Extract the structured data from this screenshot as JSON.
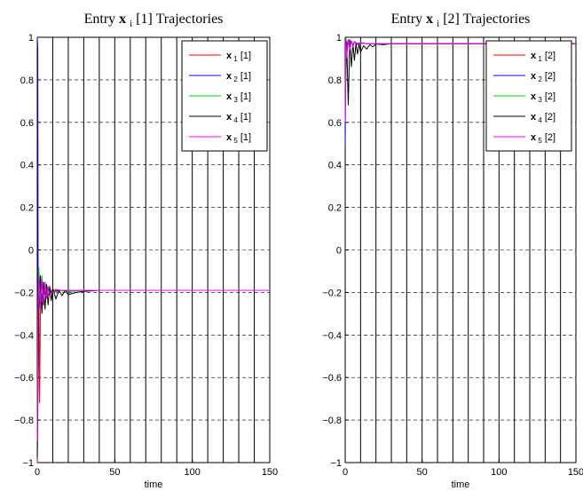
{
  "chart_data": [
    {
      "type": "line",
      "title": {
        "prefix": "Entry ",
        "bold": "x",
        "sub": "i",
        "suffix": " [1] Trajectories"
      },
      "xlabel": "time",
      "ylabel": "",
      "xlim": [
        0,
        150
      ],
      "ylim": [
        -1,
        1
      ],
      "xticks": [
        0,
        50,
        100,
        150
      ],
      "yticks": [
        -1,
        -0.8,
        -0.6,
        -0.4,
        -0.2,
        0,
        0.2,
        0.4,
        0.6,
        0.8,
        1
      ],
      "xtick_labels": [
        "0",
        "50",
        "100",
        "150"
      ],
      "ytick_labels": [
        "−1",
        "−0.8",
        "−0.6",
        "−0.4",
        "−0.2",
        "0",
        "0.2",
        "0.4",
        "0.6",
        "0.8",
        "1"
      ],
      "grid": true,
      "legend_position": "top-right",
      "series": [
        {
          "name": {
            "bold": "x",
            "sub": "1",
            "suffix": " [1]"
          },
          "color": "#ff0000",
          "x": [
            0,
            0.5,
            1,
            1.5,
            2,
            3,
            4,
            5,
            6,
            8,
            10,
            15,
            20,
            30,
            40,
            50,
            75,
            100,
            125,
            150
          ],
          "y": [
            -1,
            -0.5,
            -0.15,
            -0.72,
            -0.3,
            -0.14,
            -0.26,
            -0.18,
            -0.22,
            -0.2,
            -0.195,
            -0.19,
            -0.195,
            -0.19,
            -0.19,
            -0.19,
            -0.19,
            -0.19,
            -0.19,
            -0.19
          ]
        },
        {
          "name": {
            "bold": "x",
            "sub": "2",
            "suffix": " [1]"
          },
          "color": "#0000ff",
          "x": [
            0,
            0.3,
            0.6,
            1,
            1.5,
            2,
            3,
            4,
            5,
            6,
            8,
            10,
            15,
            20,
            30,
            40,
            50,
            75,
            100,
            125,
            150
          ],
          "y": [
            1,
            0.95,
            -0.4,
            -0.22,
            -0.25,
            -0.15,
            -0.23,
            -0.17,
            -0.21,
            -0.18,
            -0.2,
            -0.19,
            -0.19,
            -0.195,
            -0.19,
            -0.19,
            -0.19,
            -0.19,
            -0.19,
            -0.19,
            -0.19
          ]
        },
        {
          "name": {
            "bold": "x",
            "sub": "3",
            "suffix": " [1]"
          },
          "color": "#00cc00",
          "x": [
            0,
            0.5,
            1,
            2,
            3,
            4,
            5,
            6,
            8,
            10,
            15,
            20,
            30,
            40,
            50,
            75,
            100,
            125,
            150
          ],
          "y": [
            -0.95,
            -0.3,
            -0.08,
            -0.25,
            -0.12,
            -0.24,
            -0.15,
            -0.22,
            -0.18,
            -0.2,
            -0.19,
            -0.195,
            -0.19,
            -0.19,
            -0.19,
            -0.19,
            -0.19,
            -0.19,
            -0.19
          ]
        },
        {
          "name": {
            "bold": "x",
            "sub": "4",
            "suffix": " [1]"
          },
          "color": "#000000",
          "x": [
            0,
            1,
            2,
            3,
            4,
            5,
            6,
            7,
            8,
            9,
            10,
            12,
            14,
            16,
            18,
            20,
            25,
            30,
            40,
            50,
            75,
            100,
            125,
            150
          ],
          "y": [
            -0.98,
            -0.3,
            -0.12,
            -0.3,
            -0.15,
            -0.28,
            -0.16,
            -0.26,
            -0.17,
            -0.24,
            -0.18,
            -0.23,
            -0.19,
            -0.215,
            -0.19,
            -0.21,
            -0.2,
            -0.195,
            -0.19,
            -0.19,
            -0.19,
            -0.19,
            -0.19,
            -0.19
          ]
        },
        {
          "name": {
            "bold": "x",
            "sub": "5",
            "suffix": " [1]"
          },
          "color": "#ff00ff",
          "x": [
            0,
            0.5,
            1,
            2,
            3,
            4,
            5,
            6,
            7,
            8,
            10,
            12,
            15,
            20,
            30,
            40,
            50,
            75,
            100,
            125,
            150
          ],
          "y": [
            -0.9,
            -0.35,
            -0.12,
            -0.28,
            -0.14,
            -0.25,
            -0.15,
            -0.23,
            -0.17,
            -0.21,
            -0.2,
            -0.185,
            -0.19,
            -0.19,
            -0.19,
            -0.19,
            -0.19,
            -0.19,
            -0.19,
            -0.19,
            -0.19
          ]
        }
      ]
    },
    {
      "type": "line",
      "title": {
        "prefix": "Entry ",
        "bold": "x",
        "sub": "i",
        "suffix": " [2] Trajectories"
      },
      "xlabel": "time",
      "ylabel": "",
      "xlim": [
        0,
        150
      ],
      "ylim": [
        -1,
        1
      ],
      "xticks": [
        0,
        50,
        100,
        150
      ],
      "yticks": [
        -1,
        -0.8,
        -0.6,
        -0.4,
        -0.2,
        0,
        0.2,
        0.4,
        0.6,
        0.8,
        1
      ],
      "xtick_labels": [
        "0",
        "50",
        "100",
        "150"
      ],
      "ytick_labels": [
        "−1",
        "−0.8",
        "−0.6",
        "−0.4",
        "−0.2",
        "0",
        "0.2",
        "0.4",
        "0.6",
        "0.8",
        "1"
      ],
      "grid": true,
      "legend_position": "top-right",
      "series": [
        {
          "name": {
            "bold": "x",
            "sub": "1",
            "suffix": " [2]"
          },
          "color": "#ff0000",
          "x": [
            0,
            0.5,
            1,
            2,
            3,
            4,
            5,
            6,
            8,
            10,
            15,
            20,
            30,
            50,
            75,
            100,
            125,
            150
          ],
          "y": [
            0.6,
            0.99,
            0.93,
            0.99,
            0.95,
            0.985,
            0.96,
            0.98,
            0.97,
            0.975,
            0.97,
            0.97,
            0.97,
            0.97,
            0.97,
            0.97,
            0.97,
            0.97
          ]
        },
        {
          "name": {
            "bold": "x",
            "sub": "2",
            "suffix": " [2]"
          },
          "color": "#0000ff",
          "x": [
            0,
            0.5,
            1,
            2,
            3,
            4,
            5,
            6,
            8,
            10,
            15,
            20,
            30,
            50,
            75,
            100,
            125,
            150
          ],
          "y": [
            0.5,
            0.98,
            0.95,
            0.99,
            0.96,
            0.98,
            0.965,
            0.975,
            0.97,
            0.972,
            0.97,
            0.97,
            0.97,
            0.97,
            0.97,
            0.97,
            0.97,
            0.97
          ]
        },
        {
          "name": {
            "bold": "x",
            "sub": "3",
            "suffix": " [2]"
          },
          "color": "#00cc00",
          "x": [
            0,
            0.5,
            1,
            2,
            3,
            4,
            5,
            6,
            8,
            10,
            15,
            20,
            30,
            50,
            75,
            100,
            125,
            150
          ],
          "y": [
            0.7,
            1.0,
            0.94,
            0.99,
            0.95,
            0.98,
            0.96,
            0.975,
            0.965,
            0.972,
            0.97,
            0.97,
            0.97,
            0.97,
            0.97,
            0.97,
            0.97,
            0.97
          ]
        },
        {
          "name": {
            "bold": "x",
            "sub": "4",
            "suffix": " [2]"
          },
          "color": "#000000",
          "x": [
            0,
            1,
            2,
            3,
            4,
            5,
            6,
            7,
            8,
            9,
            10,
            12,
            14,
            16,
            18,
            20,
            25,
            30,
            40,
            50,
            75,
            100,
            125,
            150
          ],
          "y": [
            0.7,
            0.98,
            0.68,
            0.99,
            0.86,
            0.97,
            0.89,
            0.97,
            0.92,
            0.97,
            0.93,
            0.96,
            0.945,
            0.965,
            0.955,
            0.968,
            0.965,
            0.97,
            0.97,
            0.97,
            0.97,
            0.97,
            0.97,
            0.97
          ]
        },
        {
          "name": {
            "bold": "x",
            "sub": "5",
            "suffix": " [2]"
          },
          "color": "#ff00ff",
          "x": [
            0,
            0.5,
            1,
            2,
            3,
            4,
            5,
            6,
            8,
            10,
            15,
            20,
            30,
            50,
            75,
            100,
            125,
            150
          ],
          "y": [
            0.6,
            0.99,
            0.9,
            0.99,
            0.94,
            0.985,
            0.955,
            0.98,
            0.965,
            0.973,
            0.97,
            0.97,
            0.97,
            0.97,
            0.97,
            0.97,
            0.97,
            0.97
          ]
        }
      ]
    }
  ]
}
